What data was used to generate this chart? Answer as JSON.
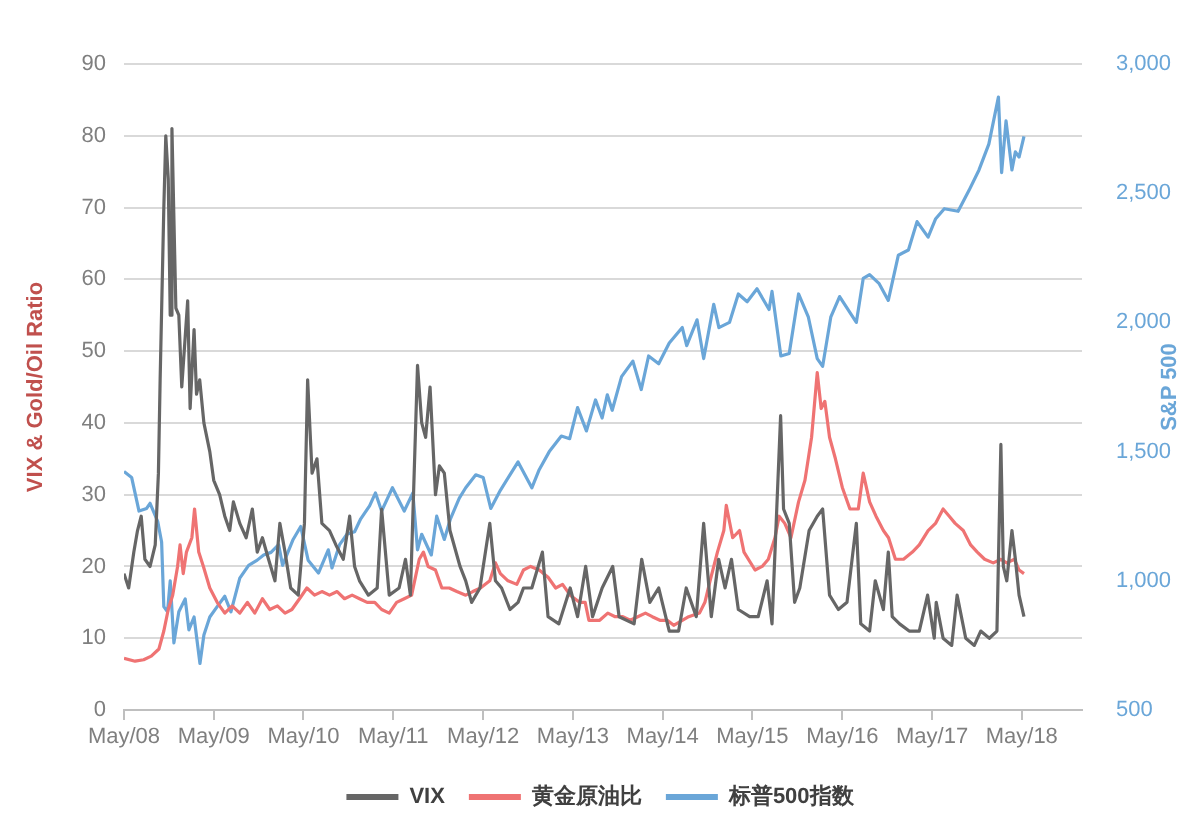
{
  "chart_data": {
    "type": "line",
    "ylabel": "VIX & Gold/Oil Ratio",
    "y2label": "S&P 500",
    "xlim": [
      "2008-05",
      "2019-01"
    ],
    "xticks": [
      {
        "value": "2008-05",
        "label": "May/08"
      },
      {
        "value": "2009-05",
        "label": "May/09"
      },
      {
        "value": "2010-05",
        "label": "May/10"
      },
      {
        "value": "2011-05",
        "label": "May/11"
      },
      {
        "value": "2012-05",
        "label": "May/12"
      },
      {
        "value": "2013-05",
        "label": "May/13"
      },
      {
        "value": "2014-05",
        "label": "May/14"
      },
      {
        "value": "2015-05",
        "label": "May/15"
      },
      {
        "value": "2016-05",
        "label": "May/16"
      },
      {
        "value": "2017-05",
        "label": "May/17"
      },
      {
        "value": "2018-05",
        "label": "May/18"
      }
    ],
    "ylim": [
      0,
      90
    ],
    "yticks": [
      0,
      10,
      20,
      30,
      40,
      50,
      60,
      70,
      80,
      90
    ],
    "y2lim": [
      500,
      3000
    ],
    "y2ticks": [
      500,
      {
        "value": 1000,
        "label": "1,000"
      },
      {
        "value": 1500,
        "label": "1,500"
      },
      {
        "value": 2000,
        "label": "2,000"
      },
      {
        "value": 2500,
        "label": "2,500"
      },
      {
        "value": 3000,
        "label": "3,000"
      }
    ],
    "grid": "y",
    "legend": "bottom",
    "marker": "none",
    "line_style": "solid",
    "series": [
      {
        "name": "VIX",
        "color": "#666666",
        "x": [
          "2008-05-01",
          "2008-05-20",
          "2008-06-10",
          "2008-06-25",
          "2008-07-10",
          "2008-07-25",
          "2008-08-15",
          "2008-09-05",
          "2008-09-18",
          "2008-09-25",
          "2008-10-10",
          "2008-10-18",
          "2008-10-28",
          "2008-11-05",
          "2008-11-12",
          "2008-11-28",
          "2008-12-10",
          "2008-12-22",
          "2009-01-15",
          "2009-01-25",
          "2009-02-10",
          "2009-02-20",
          "2009-03-05",
          "2009-03-22",
          "2009-04-15",
          "2009-05-01",
          "2009-05-25",
          "2009-06-15",
          "2009-07-05",
          "2009-07-20",
          "2009-08-15",
          "2009-09-10",
          "2009-10-05",
          "2009-10-25",
          "2009-11-15",
          "2009-12-10",
          "2010-01-05",
          "2010-01-25",
          "2010-02-15",
          "2010-03-10",
          "2010-04-10",
          "2010-05-05",
          "2010-05-18",
          "2010-06-05",
          "2010-06-25",
          "2010-07-15",
          "2010-08-15",
          "2010-09-10",
          "2010-10-10",
          "2010-11-05",
          "2010-11-25",
          "2010-12-15",
          "2011-01-20",
          "2011-02-25",
          "2011-03-15",
          "2011-04-15",
          "2011-05-25",
          "2011-06-20",
          "2011-07-10",
          "2011-08-08",
          "2011-08-25",
          "2011-09-10",
          "2011-09-28",
          "2011-10-20",
          "2011-11-05",
          "2011-11-25",
          "2011-12-18",
          "2012-01-28",
          "2012-02-20",
          "2012-03-15",
          "2012-04-18",
          "2012-05-28",
          "2012-06-20",
          "2012-07-15",
          "2012-08-18",
          "2012-09-20",
          "2012-10-12",
          "2012-11-15",
          "2012-12-28",
          "2013-01-20",
          "2013-03-05",
          "2013-04-20",
          "2013-05-20",
          "2013-06-22",
          "2013-07-20",
          "2013-08-28",
          "2013-10-10",
          "2013-11-05",
          "2014-01-05",
          "2014-02-05",
          "2014-03-10",
          "2014-04-15",
          "2014-05-28",
          "2014-07-05",
          "2014-08-05",
          "2014-09-15",
          "2014-10-15",
          "2014-11-15",
          "2014-12-15",
          "2015-01-10",
          "2015-02-05",
          "2015-03-05",
          "2015-04-20",
          "2015-05-25",
          "2015-06-30",
          "2015-07-20",
          "2015-08-24",
          "2015-09-05",
          "2015-09-28",
          "2015-10-20",
          "2015-11-10",
          "2015-12-18",
          "2016-01-20",
          "2016-02-11",
          "2016-03-10",
          "2016-04-15",
          "2016-05-20",
          "2016-06-27",
          "2016-07-15",
          "2016-08-20",
          "2016-09-12",
          "2016-10-15",
          "2016-11-04",
          "2016-11-20",
          "2016-12-20",
          "2017-01-28",
          "2017-03-10",
          "2017-04-13",
          "2017-05-10",
          "2017-05-18",
          "2017-06-15",
          "2017-07-20",
          "2017-08-11",
          "2017-09-15",
          "2017-10-20",
          "2017-11-15",
          "2017-12-20",
          "2018-01-20",
          "2018-02-05",
          "2018-02-15",
          "2018-03-01",
          "2018-03-22",
          "2018-04-05",
          "2018-04-20",
          "2018-05-10"
        ],
        "values": [
          19,
          17,
          22,
          25,
          27,
          21,
          20,
          23,
          33,
          46,
          70,
          80,
          74,
          55,
          81,
          56,
          55,
          45,
          57,
          42,
          53,
          44,
          46,
          40,
          36,
          32,
          30,
          27,
          25,
          29,
          26,
          24,
          28,
          22,
          24,
          21,
          18,
          26,
          22,
          17,
          16,
          26,
          46,
          33,
          35,
          26,
          25,
          23,
          21,
          27,
          20,
          18,
          16,
          17,
          28,
          16,
          17,
          21,
          16,
          48,
          40,
          38,
          45,
          30,
          34,
          33,
          25,
          20,
          18,
          15,
          17,
          26,
          18,
          17,
          14,
          15,
          17,
          17,
          22,
          13,
          12,
          17,
          13,
          20,
          13,
          17,
          20,
          13,
          12,
          21,
          15,
          17,
          11,
          11,
          17,
          13,
          26,
          13,
          21,
          17,
          21,
          14,
          13,
          13,
          18,
          12,
          41,
          28,
          26,
          15,
          17,
          25,
          27,
          28,
          16,
          14,
          15,
          26,
          12,
          11,
          18,
          14,
          22,
          13,
          12,
          11,
          11,
          16,
          10,
          15,
          10,
          9,
          16,
          10,
          9,
          11,
          10,
          11,
          37,
          20,
          18,
          25,
          21,
          16,
          13
        ]
      },
      {
        "name": "黄金原油比",
        "color": "#ef7373",
        "x": [
          "2008-05-01",
          "2008-06-15",
          "2008-07-20",
          "2008-08-20",
          "2008-09-20",
          "2008-10-10",
          "2008-10-28",
          "2008-11-15",
          "2008-12-05",
          "2008-12-15",
          "2008-12-28",
          "2009-01-10",
          "2009-02-01",
          "2009-02-12",
          "2009-03-01",
          "2009-03-20",
          "2009-04-15",
          "2009-05-15",
          "2009-06-15",
          "2009-07-15",
          "2009-08-15",
          "2009-09-15",
          "2009-10-15",
          "2009-11-15",
          "2009-12-15",
          "2010-01-15",
          "2010-02-15",
          "2010-03-15",
          "2010-04-15",
          "2010-05-15",
          "2010-06-15",
          "2010-07-15",
          "2010-08-15",
          "2010-09-15",
          "2010-10-15",
          "2010-11-15",
          "2010-12-15",
          "2011-01-15",
          "2011-02-15",
          "2011-03-15",
          "2011-04-15",
          "2011-05-15",
          "2011-06-15",
          "2011-07-15",
          "2011-08-15",
          "2011-09-01",
          "2011-09-20",
          "2011-10-20",
          "2011-11-15",
          "2011-12-15",
          "2012-01-15",
          "2012-02-20",
          "2012-03-20",
          "2012-04-20",
          "2012-05-28",
          "2012-06-20",
          "2012-07-10",
          "2012-08-10",
          "2012-09-15",
          "2012-10-12",
          "2012-11-10",
          "2012-12-15",
          "2013-01-20",
          "2013-02-20",
          "2013-03-20",
          "2013-04-20",
          "2013-05-28",
          "2013-06-20",
          "2013-07-05",
          "2013-08-18",
          "2013-09-20",
          "2013-10-20",
          "2013-11-20",
          "2013-12-20",
          "2014-01-20",
          "2014-02-20",
          "2014-03-20",
          "2014-04-20",
          "2014-05-20",
          "2014-06-15",
          "2014-07-20",
          "2014-08-15",
          "2014-09-28",
          "2014-10-20",
          "2014-11-10",
          "2014-12-10",
          "2015-01-05",
          "2015-01-15",
          "2015-02-10",
          "2015-03-10",
          "2015-03-28",
          "2015-05-12",
          "2015-06-10",
          "2015-07-05",
          "2015-08-01",
          "2015-08-18",
          "2015-09-10",
          "2015-10-05",
          "2015-11-05",
          "2015-12-01",
          "2015-12-28",
          "2016-01-20",
          "2016-02-05",
          "2016-02-20",
          "2016-03-10",
          "2016-04-03",
          "2016-05-01",
          "2016-06-01",
          "2016-07-05",
          "2016-07-25",
          "2016-08-20",
          "2016-09-15",
          "2016-10-15",
          "2016-11-05",
          "2016-12-03",
          "2017-01-05",
          "2017-02-10",
          "2017-03-10",
          "2017-04-15",
          "2017-05-15",
          "2017-06-15",
          "2017-07-10",
          "2017-08-03",
          "2017-09-05",
          "2017-10-05",
          "2017-11-01",
          "2017-12-01",
          "2018-01-05",
          "2018-02-05",
          "2018-03-01",
          "2018-04-01",
          "2018-04-20",
          "2018-05-10"
        ],
        "values": [
          7.2,
          6.8,
          7,
          7.5,
          8.5,
          11,
          14,
          16,
          20,
          23,
          19,
          22,
          24,
          28,
          22,
          20,
          17,
          15,
          13.5,
          14.5,
          13.5,
          15,
          13.5,
          15.5,
          14,
          14.5,
          13.5,
          14,
          15.5,
          17,
          16,
          16.5,
          16,
          16.5,
          15.5,
          16,
          15.5,
          15,
          15,
          14,
          13.5,
          15,
          15.5,
          16,
          21,
          22,
          20,
          19.5,
          17,
          17,
          16.5,
          16,
          16.5,
          17,
          18,
          20.5,
          19,
          18,
          17.5,
          19.5,
          20,
          19.5,
          18.5,
          17,
          17.5,
          16,
          15,
          15,
          12.5,
          12.5,
          13.5,
          13,
          13,
          12.5,
          13,
          13.5,
          13,
          12.5,
          12.5,
          11.8,
          12.5,
          13,
          13.5,
          15,
          18,
          22,
          25,
          28.5,
          24,
          25,
          22,
          19.5,
          20,
          21,
          24,
          27,
          26,
          24,
          29,
          32,
          38,
          47,
          42,
          43,
          38,
          35,
          31,
          28,
          28,
          33,
          29,
          27,
          25,
          24,
          21,
          21,
          22,
          23,
          25,
          26,
          28,
          27,
          26,
          25,
          23,
          22,
          21,
          20.5,
          21,
          20.5,
          21,
          19.5,
          19
        ]
      },
      {
        "name": "标普500指数",
        "color": "#6aa6d8",
        "axis": "y2",
        "x": [
          "2008-05-01",
          "2008-06-01",
          "2008-07-01",
          "2008-08-01",
          "2008-08-15",
          "2008-09-15",
          "2008-10-01",
          "2008-10-10",
          "2008-10-25",
          "2008-11-05",
          "2008-11-20",
          "2008-12-10",
          "2009-01-05",
          "2009-01-20",
          "2009-02-10",
          "2009-03-06",
          "2009-03-22",
          "2009-04-15",
          "2009-05-15",
          "2009-06-15",
          "2009-07-10",
          "2009-08-15",
          "2009-09-20",
          "2009-10-25",
          "2009-11-20",
          "2009-12-20",
          "2010-01-20",
          "2010-02-05",
          "2010-03-20",
          "2010-04-20",
          "2010-05-20",
          "2010-07-01",
          "2010-08-10",
          "2010-08-25",
          "2010-09-25",
          "2010-10-25",
          "2010-11-25",
          "2010-12-20",
          "2011-01-25",
          "2011-02-18",
          "2011-03-15",
          "2011-04-28",
          "2011-06-15",
          "2011-07-20",
          "2011-08-08",
          "2011-08-25",
          "2011-10-03",
          "2011-10-25",
          "2011-11-25",
          "2011-12-20",
          "2012-01-25",
          "2012-02-20",
          "2012-04-01",
          "2012-05-01",
          "2012-06-01",
          "2012-07-10",
          "2012-08-18",
          "2012-09-20",
          "2012-11-15",
          "2012-12-15",
          "2013-01-25",
          "2013-03-15",
          "2013-04-18",
          "2013-05-20",
          "2013-06-25",
          "2013-08-01",
          "2013-08-28",
          "2013-09-18",
          "2013-10-08",
          "2013-11-15",
          "2013-12-31",
          "2014-02-03",
          "2014-03-05",
          "2014-04-15",
          "2014-05-28",
          "2014-07-20",
          "2014-08-07",
          "2014-09-18",
          "2014-10-15",
          "2014-11-25",
          "2014-12-16",
          "2015-01-28",
          "2015-03-05",
          "2015-04-10",
          "2015-05-20",
          "2015-07-08",
          "2015-07-20",
          "2015-08-25",
          "2015-09-28",
          "2015-11-05",
          "2015-12-15",
          "2016-01-20",
          "2016-02-11",
          "2016-03-15",
          "2016-04-20",
          "2016-06-27",
          "2016-07-25",
          "2016-08-20",
          "2016-09-28",
          "2016-11-04",
          "2016-12-15",
          "2017-01-25",
          "2017-03-01",
          "2017-04-15",
          "2017-05-15",
          "2017-06-20",
          "2017-08-15",
          "2017-09-28",
          "2017-11-08",
          "2017-12-18",
          "2018-01-26",
          "2018-02-08",
          "2018-02-26",
          "2018-03-22",
          "2018-04-05",
          "2018-04-20",
          "2018-05-10"
        ],
        "values": [
          1423,
          1400,
          1270,
          1280,
          1300,
          1230,
          1150,
          900,
          880,
          1000,
          760,
          880,
          930,
          810,
          860,
          680,
          790,
          860,
          900,
          940,
          880,
          1010,
          1060,
          1080,
          1100,
          1110,
          1140,
          1060,
          1160,
          1210,
          1080,
          1030,
          1120,
          1050,
          1140,
          1180,
          1190,
          1240,
          1290,
          1340,
          1270,
          1360,
          1270,
          1340,
          1120,
          1180,
          1100,
          1250,
          1160,
          1240,
          1320,
          1360,
          1410,
          1400,
          1280,
          1350,
          1410,
          1460,
          1360,
          1430,
          1500,
          1560,
          1550,
          1670,
          1580,
          1700,
          1630,
          1720,
          1660,
          1790,
          1850,
          1740,
          1870,
          1840,
          1920,
          1980,
          1910,
          2010,
          1860,
          2070,
          1980,
          2000,
          2110,
          2080,
          2130,
          2050,
          2120,
          1870,
          1880,
          2110,
          2020,
          1860,
          1830,
          2020,
          2100,
          2000,
          2170,
          2185,
          2150,
          2085,
          2260,
          2280,
          2390,
          2330,
          2400,
          2440,
          2430,
          2510,
          2590,
          2690,
          2872,
          2580,
          2780,
          2590,
          2660,
          2640,
          2720
        ]
      }
    ]
  }
}
